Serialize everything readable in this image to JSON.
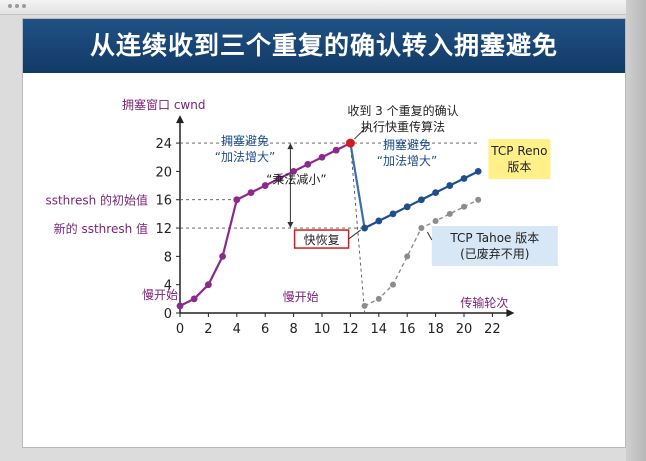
{
  "slide": {
    "title": "从连续收到三个重复的确认转入拥塞避免"
  },
  "chart_data": {
    "type": "line",
    "ylabel": "拥塞窗口 cwnd",
    "xlabel": "传输轮次",
    "x_ticks": [
      0,
      2,
      4,
      6,
      8,
      10,
      12,
      14,
      16,
      18,
      20,
      22
    ],
    "y_ticks": [
      0,
      4,
      8,
      12,
      16,
      20,
      24
    ],
    "xlim": [
      0,
      22
    ],
    "ylim": [
      0,
      24
    ],
    "ytick_labels_extra": [
      {
        "y": 16,
        "label": "ssthresh 的初始值"
      },
      {
        "y": 12,
        "label": "新的 ssthresh 值"
      }
    ],
    "series": [
      {
        "name": "TCP Reno 版本",
        "color": "#1f4e8c",
        "segments": [
          {
            "style": "slow-start",
            "color": "#8b2a8b",
            "x": [
              0,
              1,
              2,
              3,
              4
            ],
            "y": [
              1,
              2,
              4,
              8,
              16
            ]
          },
          {
            "style": "congestion-avoidance",
            "color": "#8b2a8b",
            "x": [
              4,
              5,
              6,
              7,
              8,
              9,
              10,
              11,
              12
            ],
            "y": [
              16,
              17,
              18,
              19,
              20,
              21,
              22,
              23,
              24
            ]
          },
          {
            "style": "fast-recovery-drop",
            "color": "#3a6fa8",
            "x": [
              12,
              13
            ],
            "y": [
              24,
              12
            ]
          },
          {
            "style": "congestion-avoidance",
            "color": "#1f4e8c",
            "x": [
              13,
              14,
              15,
              16,
              17,
              18,
              19,
              20,
              21
            ],
            "y": [
              12,
              13,
              14,
              15,
              16,
              17,
              18,
              19,
              20
            ]
          }
        ]
      },
      {
        "name": "TCP Tahoe 版本",
        "color": "#8c8c8c",
        "dashed": true,
        "segments": [
          {
            "style": "tahoe",
            "color": "#8c8c8c",
            "x": [
              13,
              14,
              15,
              16,
              17,
              18,
              19,
              20,
              21
            ],
            "y": [
              1,
              2,
              4,
              8,
              12,
              13,
              14,
              15,
              16
            ]
          }
        ]
      }
    ],
    "annotations": {
      "slow_start_1": "慢开始",
      "slow_start_2": "慢开始",
      "ca_1_line1": "拥塞避免",
      "ca_1_line2": "“加法增大”",
      "mult_decrease": "“乘法减小”",
      "three_dup_line1": "收到 3 个重复的确认",
      "three_dup_line2": "执行快重传算法",
      "ca_2_line1": "拥塞避免",
      "ca_2_line2": "“加法增大”",
      "fast_recovery": "快恢复",
      "reno_line1": "TCP Reno",
      "reno_line2": "版本",
      "tahoe_line1": "TCP Tahoe 版本",
      "tahoe_line2": "(已废弃不用)"
    },
    "colors": {
      "axis": "#222222",
      "purple_text": "#7a1f7a",
      "blue_text": "#1f4e8c",
      "red_marker": "#d01c1c",
      "reno_box": "#fff08a",
      "tahoe_box": "#d7e7f6"
    }
  }
}
